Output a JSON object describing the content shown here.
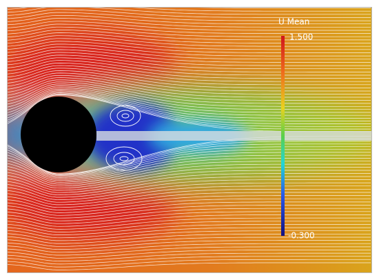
{
  "colorbar": {
    "title": "U Mean",
    "max_label": "1.500",
    "min_label": "-0.300"
  }
}
